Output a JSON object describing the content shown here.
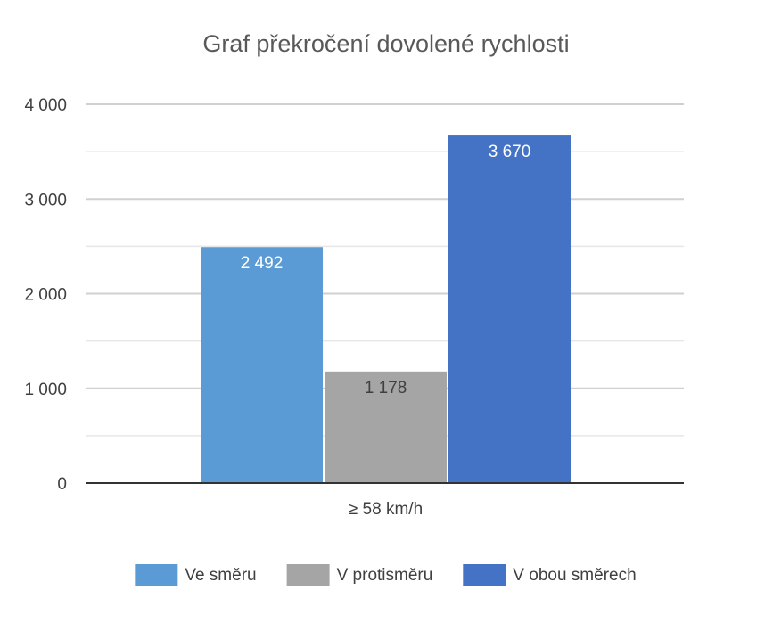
{
  "chart_data": {
    "type": "bar",
    "title": "Graf překročení dovolené rychlosti",
    "categories": [
      "≥ 58 km/h"
    ],
    "series": [
      {
        "name": "Ve směru",
        "values": [
          2492
        ],
        "value_label": "2 492",
        "color": "#5b9bd5",
        "label_color": "#ffffff"
      },
      {
        "name": "V protisměru",
        "values": [
          1178
        ],
        "value_label": "1 178",
        "color": "#a5a5a5",
        "label_color": "#404040"
      },
      {
        "name": "V obou směrech",
        "values": [
          3670
        ],
        "value_label": "3 670",
        "color": "#4472c4",
        "label_color": "#ffffff"
      }
    ],
    "ylim": [
      0,
      4000
    ],
    "yticks": [
      {
        "value": 0,
        "label": "0"
      },
      {
        "value": 1000,
        "label": "1 000"
      },
      {
        "value": 2000,
        "label": "2 000"
      },
      {
        "value": 3000,
        "label": "3 000"
      },
      {
        "value": 4000,
        "label": "4 000"
      }
    ],
    "minor_gridlines": [
      500,
      1500,
      2500,
      3500
    ],
    "grid": true,
    "legend_position": "bottom",
    "xlabel": "",
    "ylabel": ""
  }
}
